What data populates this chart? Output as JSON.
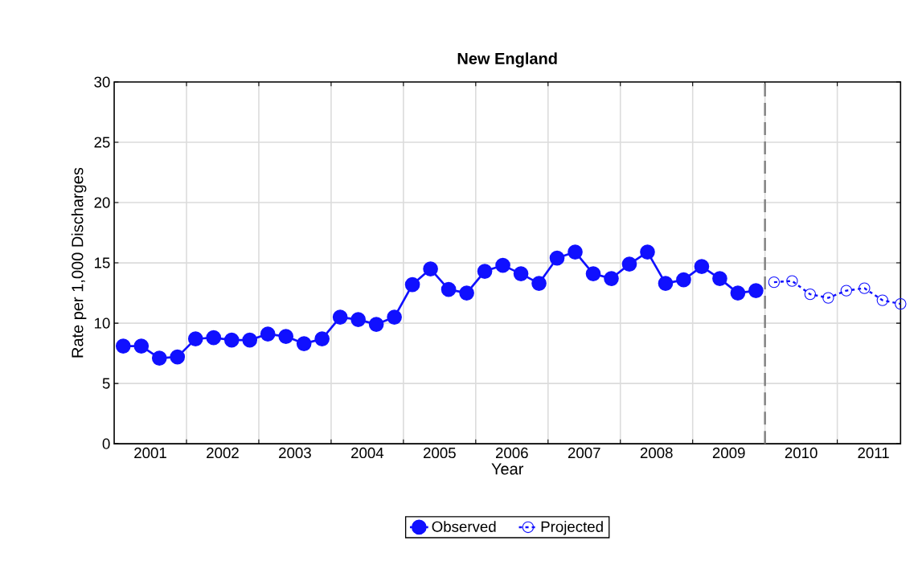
{
  "chart_data": {
    "type": "line",
    "title": "New England",
    "xlabel": "Year",
    "ylabel": "Rate per 1,000 Discharges",
    "series": [
      {
        "name": "Observed",
        "color": "#1010ff",
        "marker": "circle",
        "line_style": "solid",
        "x": [
          2001.125,
          2001.375,
          2001.625,
          2001.875,
          2002.125,
          2002.375,
          2002.625,
          2002.875,
          2003.125,
          2003.375,
          2003.625,
          2003.875,
          2004.125,
          2004.375,
          2004.625,
          2004.875,
          2005.125,
          2005.375,
          2005.625,
          2005.875,
          2006.125,
          2006.375,
          2006.625,
          2006.875,
          2007.125,
          2007.375,
          2007.625,
          2007.875,
          2008.125,
          2008.375,
          2008.625,
          2008.875,
          2009.125,
          2009.375,
          2009.625,
          2009.875
        ],
        "values": [
          8.1,
          8.1,
          7.1,
          7.2,
          8.7,
          8.8,
          8.6,
          8.6,
          9.1,
          8.9,
          8.3,
          8.7,
          10.5,
          10.3,
          9.9,
          10.5,
          13.2,
          14.5,
          12.8,
          12.5,
          14.3,
          14.8,
          14.1,
          13.3,
          15.4,
          15.9,
          14.1,
          13.7,
          14.9,
          15.9,
          13.3,
          13.6,
          14.7,
          13.7,
          12.5,
          12.7
        ]
      },
      {
        "name": "Projected",
        "color": "#1010ff",
        "marker": "circle",
        "line_style": "dashed",
        "x": [
          2010.125,
          2010.375,
          2010.625,
          2010.875,
          2011.125,
          2011.375,
          2011.625,
          2011.875
        ],
        "values": [
          13.4,
          13.5,
          12.4,
          12.1,
          12.7,
          12.9,
          11.9,
          11.6
        ]
      }
    ],
    "xlim": [
      2001,
      2011.875
    ],
    "ylim": [
      0,
      30
    ],
    "xticks": [
      {
        "value": 2001.5,
        "label": "2001"
      },
      {
        "value": 2002,
        "label": null
      },
      {
        "value": 2002.5,
        "label": "2002"
      },
      {
        "value": 2003,
        "label": null
      },
      {
        "value": 2003.5,
        "label": "2003"
      },
      {
        "value": 2004,
        "label": null
      },
      {
        "value": 2004.5,
        "label": "2004"
      },
      {
        "value": 2005,
        "label": null
      },
      {
        "value": 2005.5,
        "label": "2005"
      },
      {
        "value": 2006,
        "label": null
      },
      {
        "value": 2006.5,
        "label": "2006"
      },
      {
        "value": 2007,
        "label": null
      },
      {
        "value": 2007.5,
        "label": "2007"
      },
      {
        "value": 2008,
        "label": null
      },
      {
        "value": 2008.5,
        "label": "2008"
      },
      {
        "value": 2009,
        "label": null
      },
      {
        "value": 2009.5,
        "label": "2009"
      },
      {
        "value": 2010,
        "label": null
      },
      {
        "value": 2010.5,
        "label": "2010"
      },
      {
        "value": 2011,
        "label": null
      },
      {
        "value": 2011.5,
        "label": "2011"
      }
    ],
    "yticks": [
      0,
      5,
      10,
      15,
      20,
      25,
      30
    ],
    "ref_lines": [
      {
        "axis": "x",
        "value": 2010,
        "color": "#808080",
        "line_style": "dashed"
      }
    ],
    "grid": true,
    "legend": "bottom"
  }
}
